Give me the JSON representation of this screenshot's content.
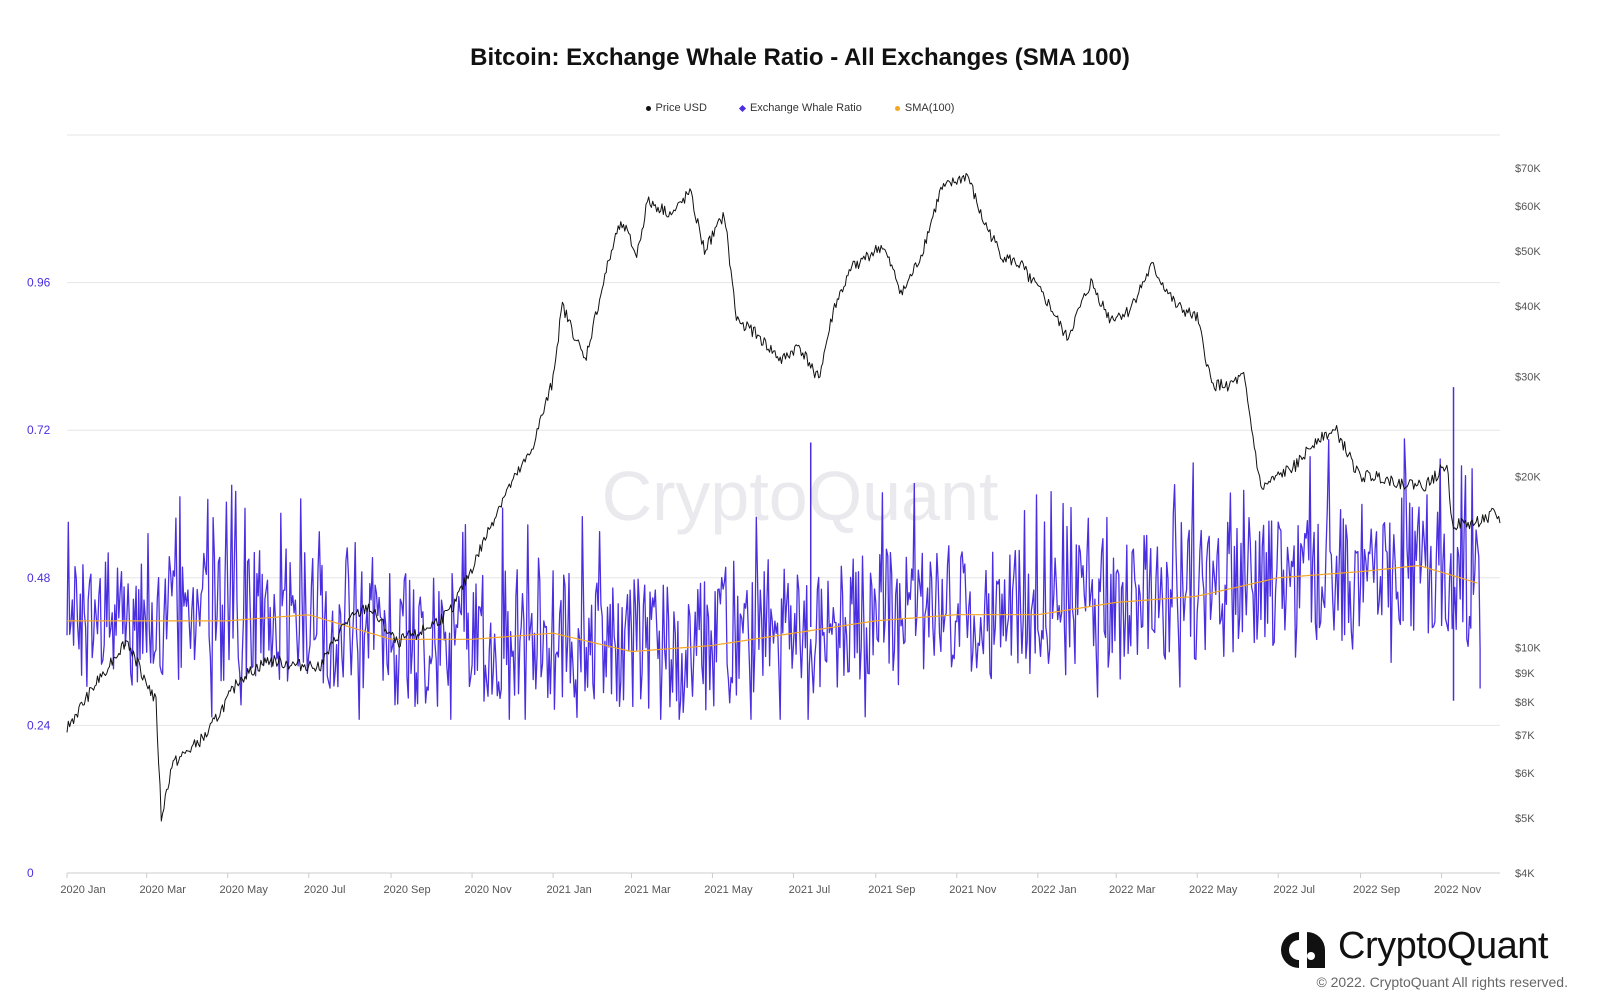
{
  "chart_data": {
    "type": "line",
    "title": "Bitcoin: Exchange Whale Ratio - All Exchanges (SMA 100)",
    "legend": [
      {
        "name": "Price USD",
        "color": "#111111",
        "marker": "dot"
      },
      {
        "name": "Exchange Whale Ratio",
        "color": "#4a2fe0",
        "marker": "diamond"
      },
      {
        "name": "SMA(100)",
        "color": "#f5a623",
        "marker": "dot"
      }
    ],
    "legend_position": "top-center",
    "x_ticks": [
      "2020 Jan",
      "2020 Mar",
      "2020 May",
      "2020 Jul",
      "2020 Sep",
      "2020 Nov",
      "2021 Jan",
      "2021 Mar",
      "2021 May",
      "2021 Jul",
      "2021 Sep",
      "2021 Nov",
      "2022 Jan",
      "2022 Mar",
      "2022 May",
      "2022 Jul",
      "2022 Sep",
      "2022 Nov"
    ],
    "x_range": [
      "2020-01-01",
      "2022-12-15"
    ],
    "y_left": {
      "ticks": [
        "0",
        "0.24",
        "0.48",
        "0.72",
        "0.96"
      ],
      "range": [
        0,
        1.2
      ],
      "color": "#4a2fe0"
    },
    "y_right": {
      "ticks": [
        "$4K",
        "$5K",
        "$6K",
        "$7K",
        "$8K",
        "$9K",
        "$10K",
        "$20K",
        "$30K",
        "$40K",
        "$50K",
        "$60K",
        "$70K"
      ],
      "scale": "log",
      "range": [
        4000,
        80000
      ]
    },
    "grid": "horizontal",
    "series": [
      {
        "name": "Price USD",
        "axis": "right",
        "x": [
          "2020-01-01",
          "2020-02-01",
          "2020-02-15",
          "2020-03-08",
          "2020-03-12",
          "2020-03-20",
          "2020-04-15",
          "2020-05-10",
          "2020-06-01",
          "2020-06-20",
          "2020-07-10",
          "2020-07-28",
          "2020-08-15",
          "2020-09-05",
          "2020-09-25",
          "2020-10-15",
          "2020-11-01",
          "2020-11-25",
          "2020-12-15",
          "2020-12-31",
          "2021-01-08",
          "2021-01-25",
          "2021-02-10",
          "2021-02-21",
          "2021-03-05",
          "2021-03-13",
          "2021-04-01",
          "2021-04-14",
          "2021-04-25",
          "2021-05-10",
          "2021-05-19",
          "2021-06-01",
          "2021-06-22",
          "2021-07-05",
          "2021-07-20",
          "2021-08-01",
          "2021-08-15",
          "2021-09-06",
          "2021-09-21",
          "2021-10-05",
          "2021-10-20",
          "2021-11-09",
          "2021-11-20",
          "2021-12-05",
          "2021-12-20",
          "2022-01-10",
          "2022-01-23",
          "2022-02-10",
          "2022-02-24",
          "2022-03-10",
          "2022-03-28",
          "2022-04-15",
          "2022-05-01",
          "2022-05-12",
          "2022-05-25",
          "2022-06-05",
          "2022-06-18",
          "2022-07-01",
          "2022-07-15",
          "2022-07-31",
          "2022-08-14",
          "2022-08-31",
          "2022-09-15",
          "2022-10-01",
          "2022-10-20",
          "2022-11-05",
          "2022-11-09",
          "2022-11-25",
          "2022-12-10",
          "2022-12-15"
        ],
        "values": [
          7200,
          9300,
          10300,
          8000,
          5000,
          6200,
          7000,
          8800,
          9500,
          9300,
          9300,
          11000,
          11800,
          10200,
          10700,
          11500,
          13800,
          18500,
          22000,
          29000,
          40000,
          32000,
          46000,
          57000,
          49000,
          61000,
          58000,
          63500,
          50000,
          58000,
          38000,
          36000,
          32000,
          34000,
          29800,
          40000,
          47000,
          51000,
          42000,
          49000,
          64000,
          68000,
          57000,
          49000,
          47000,
          40000,
          35000,
          44000,
          38000,
          39000,
          47000,
          40000,
          38000,
          29000,
          29000,
          30000,
          19000,
          20000,
          21000,
          23500,
          24000,
          20000,
          20000,
          19500,
          19300,
          21000,
          16500,
          16500,
          17200,
          16800
        ]
      },
      {
        "name": "Exchange Whale Ratio",
        "axis": "left",
        "note": "daily values fluctuating mostly between 0.28 and 0.56, spikes to ~0.72 and 0.79"
      },
      {
        "name": "SMA(100)",
        "axis": "left",
        "x": [
          "2020-01-01",
          "2020-03-01",
          "2020-05-01",
          "2020-07-01",
          "2020-09-01",
          "2020-11-01",
          "2021-01-01",
          "2021-03-01",
          "2021-05-01",
          "2021-07-01",
          "2021-09-01",
          "2021-11-01",
          "2022-01-01",
          "2022-03-01",
          "2022-05-01",
          "2022-07-01",
          "2022-09-01",
          "2022-10-15",
          "2022-11-15",
          "2022-11-30"
        ],
        "values": [
          0.41,
          0.41,
          0.41,
          0.42,
          0.38,
          0.38,
          0.39,
          0.36,
          0.37,
          0.39,
          0.41,
          0.42,
          0.42,
          0.44,
          0.45,
          0.48,
          0.49,
          0.5,
          0.48,
          0.47
        ]
      }
    ]
  },
  "brand": {
    "name": "CryptoQuant",
    "copyright": "© 2022. CryptoQuant All rights reserved."
  }
}
